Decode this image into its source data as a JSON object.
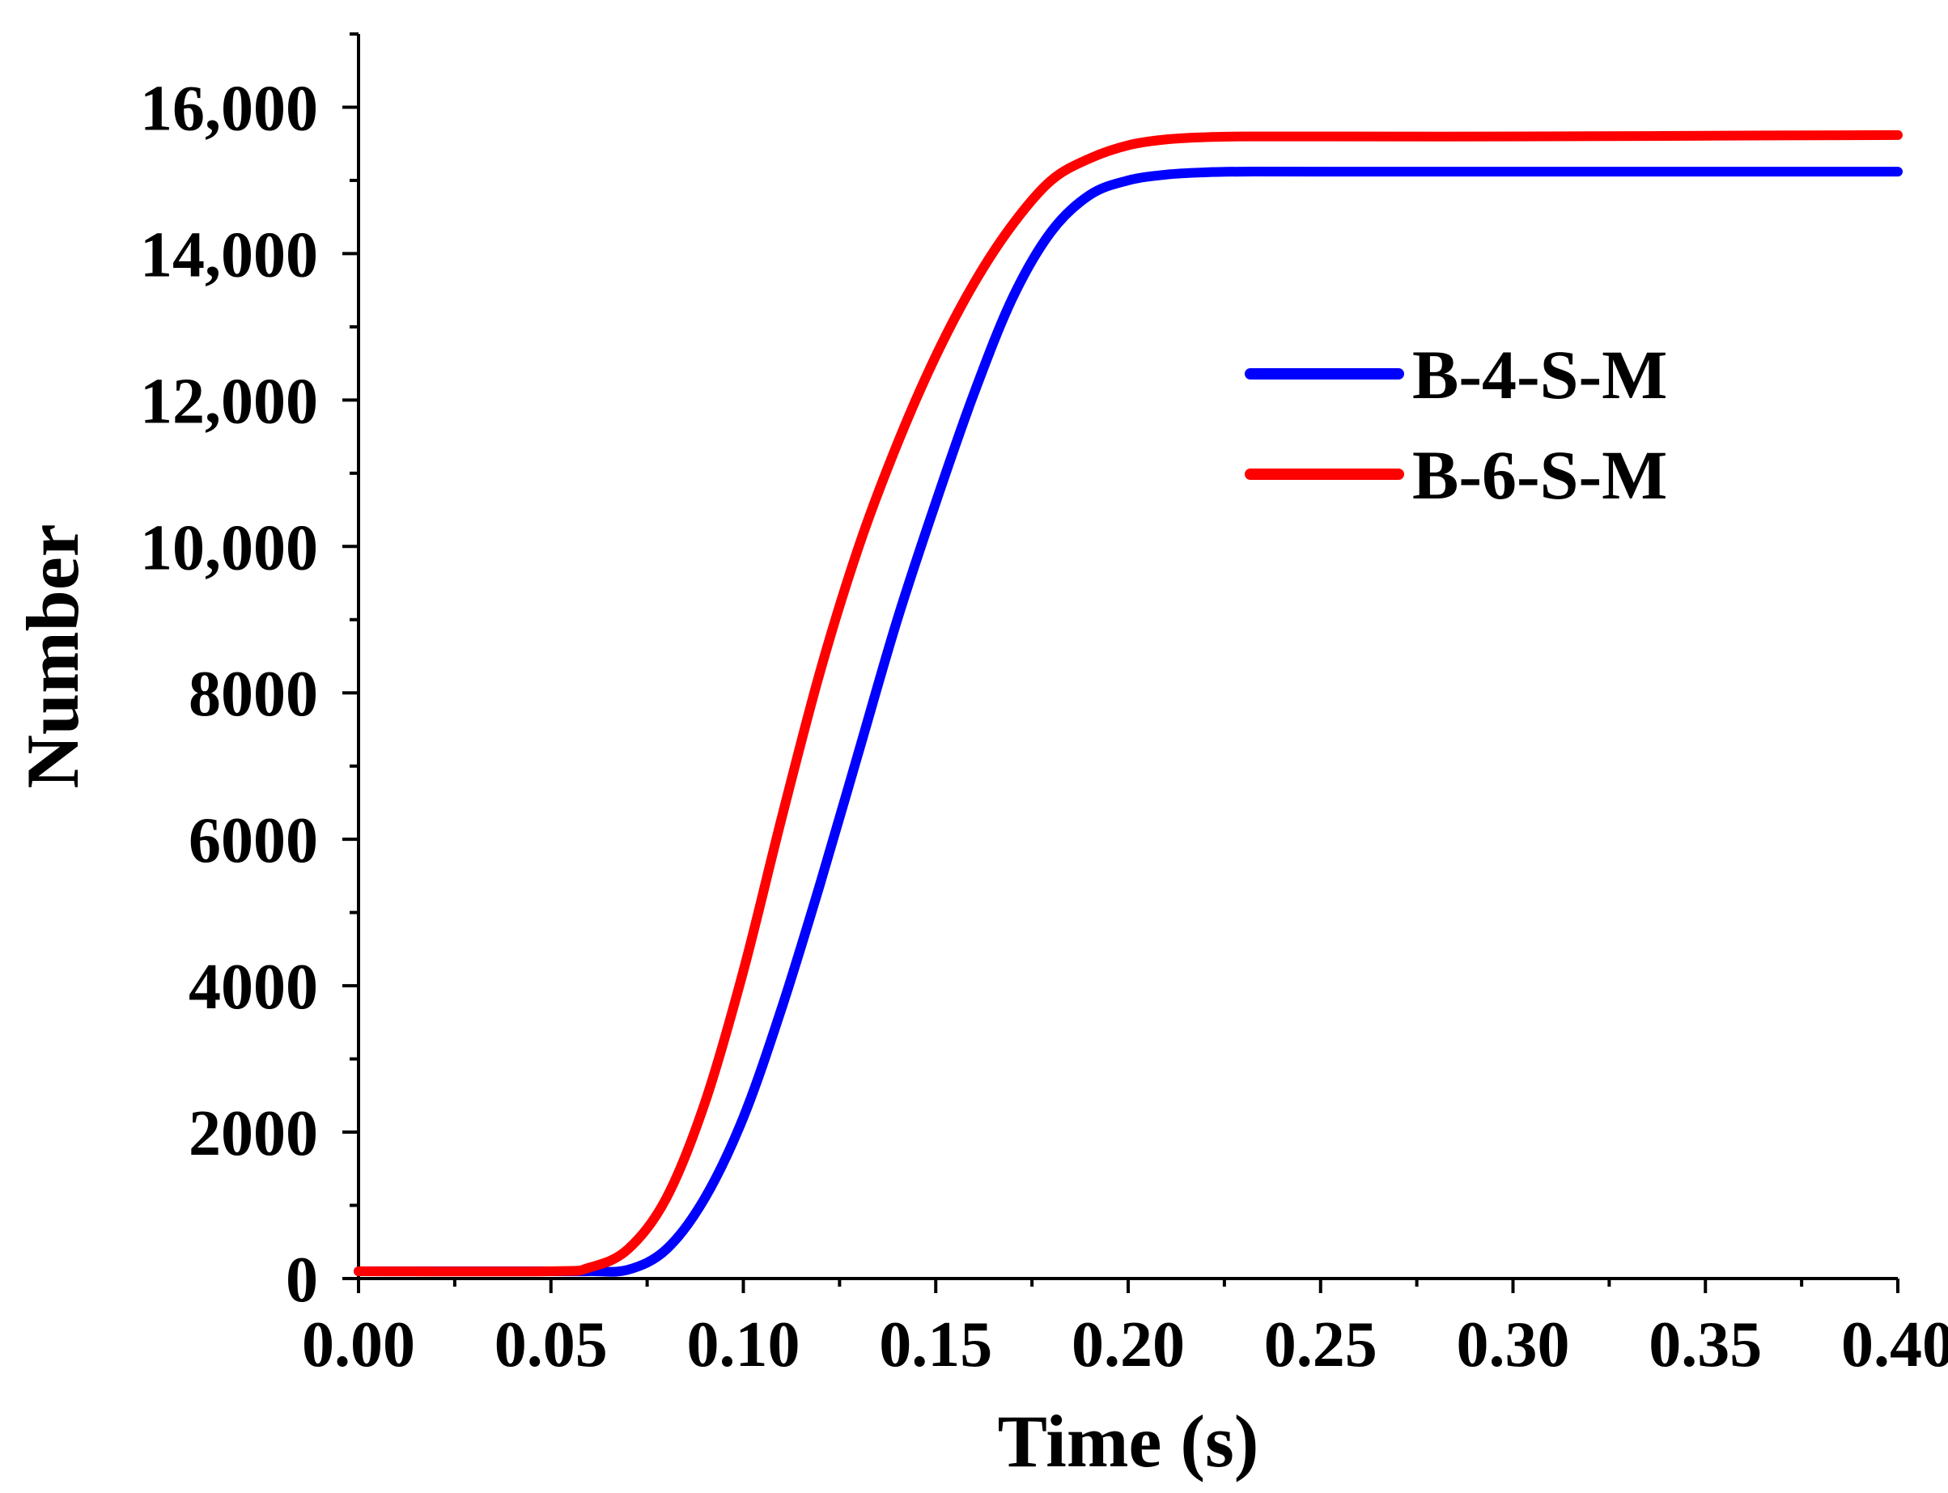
{
  "chart_data": {
    "type": "line",
    "title": "",
    "xlabel": "Time (s)",
    "ylabel": "Number",
    "xlim": [
      0.0,
      0.4
    ],
    "ylim": [
      0,
      17000
    ],
    "x_ticks": [
      0.0,
      0.05,
      0.1,
      0.15,
      0.2,
      0.25,
      0.3,
      0.35,
      0.4
    ],
    "x_tick_labels": [
      "0.00",
      "0.05",
      "0.10",
      "0.15",
      "0.20",
      "0.25",
      "0.30",
      "0.35",
      "0.40"
    ],
    "y_ticks": [
      0,
      2000,
      4000,
      6000,
      8000,
      10000,
      12000,
      14000,
      16000
    ],
    "y_tick_labels": [
      "0",
      "2000",
      "4000",
      "6000",
      "8000",
      "10,000",
      "12,000",
      "14,000",
      "16,000"
    ],
    "grid": false,
    "legend_position": "upper-right",
    "series": [
      {
        "name": "B-4-S-M",
        "color": "#0000ff",
        "x": [
          0.0,
          0.05,
          0.06,
          0.07,
          0.08,
          0.09,
          0.1,
          0.11,
          0.12,
          0.13,
          0.14,
          0.15,
          0.16,
          0.17,
          0.18,
          0.19,
          0.2,
          0.21,
          0.22,
          0.23,
          0.25,
          0.3,
          0.35,
          0.4
        ],
        "values": [
          100,
          100,
          100,
          120,
          400,
          1100,
          2200,
          3700,
          5400,
          7200,
          9000,
          10600,
          12100,
          13400,
          14300,
          14800,
          15000,
          15080,
          15110,
          15120,
          15120,
          15120,
          15120,
          15120
        ]
      },
      {
        "name": "B-6-S-M",
        "color": "#ff0000",
        "x": [
          0.0,
          0.05,
          0.06,
          0.07,
          0.08,
          0.09,
          0.1,
          0.11,
          0.12,
          0.13,
          0.14,
          0.15,
          0.16,
          0.17,
          0.18,
          0.19,
          0.2,
          0.21,
          0.22,
          0.23,
          0.25,
          0.3,
          0.35,
          0.4
        ],
        "values": [
          100,
          100,
          150,
          400,
          1100,
          2400,
          4200,
          6300,
          8300,
          10000,
          11400,
          12600,
          13600,
          14400,
          15000,
          15300,
          15480,
          15560,
          15590,
          15600,
          15600,
          15600,
          15610,
          15620
        ]
      }
    ]
  }
}
